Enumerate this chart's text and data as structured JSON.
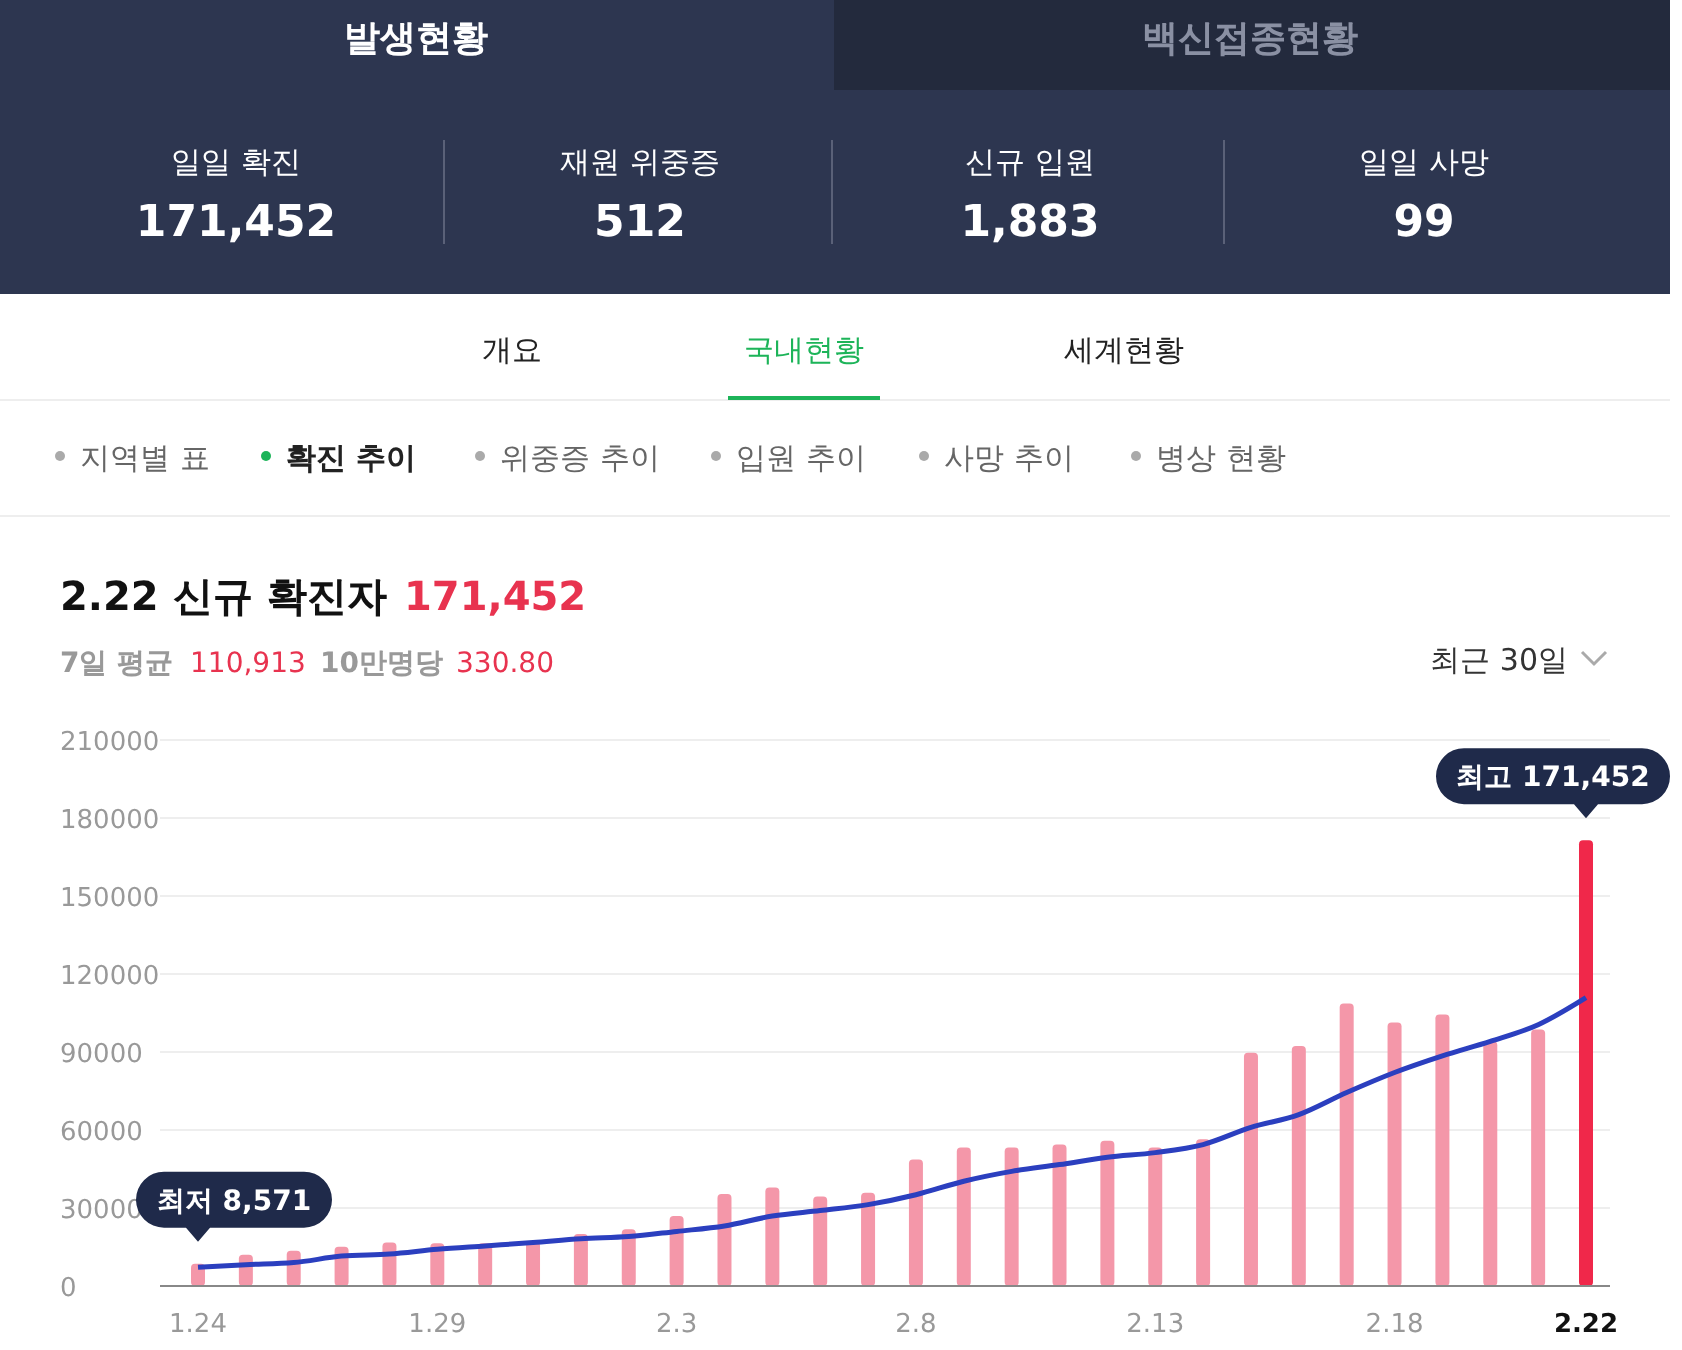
{
  "chart_data": [
    {
      "type": "other",
      "annotations": [
        "발생현황",
        "백신접종현황",
        "일일 확진",
        "171,452",
        "재원 위중증",
        "512",
        "신규 입원",
        "1,883",
        "일일 사망",
        "99",
        "개요",
        "국내현황",
        "세계현황",
        "지역별 표",
        "확진 추이",
        "위중증 추이",
        "입원 추이",
        "사망 추이",
        "병상 현황"
      ]
    },
    {
      "type": "bar",
      "title": "2.22 신규 확진자",
      "categories": [
        "1.24",
        null,
        null,
        null,
        null,
        "1.29",
        null,
        null,
        null,
        null,
        "2.3",
        null,
        null,
        null,
        null,
        "2.8",
        null,
        null,
        null,
        null,
        "2.13",
        null,
        null,
        null,
        null,
        "2.18",
        null,
        null,
        null,
        "2.22"
      ],
      "series": [
        {
          "type": "bar",
          "colors": [
            "#f497a9",
            "#f497a9",
            "#f497a9",
            "#f497a9",
            "#f497a9",
            "#f497a9",
            "#f497a9",
            "#f497a9",
            "#f497a9",
            "#f497a9",
            "#f497a9",
            "#f497a9",
            "#f497a9",
            "#f497a9",
            "#f497a9",
            "#f497a9",
            "#f497a9",
            "#f497a9",
            "#f497a9",
            "#f497a9",
            "#f497a9",
            "#f497a9",
            "#f497a9",
            "#f497a9",
            "#f497a9",
            "#f497a9",
            "#f497a9",
            "#f497a9",
            "#f497a9",
            "#f0284a"
          ],
          "values": [
            8571,
            12000,
            13600,
            15100,
            16700,
            16400,
            16400,
            17000,
            20000,
            21800,
            26900,
            35400,
            37900,
            34400,
            35900,
            48700,
            53300,
            53300,
            54400,
            55900,
            53300,
            56400,
            89700,
            92300,
            108700,
            101300,
            104400,
            94100,
            98700,
            171452
          ]
        },
        {
          "type": "line",
          "color": "#2b3fbf",
          "values": [
            7200,
            8200,
            9000,
            11500,
            12300,
            14100,
            15400,
            16700,
            18200,
            19000,
            21000,
            23100,
            26900,
            29000,
            31300,
            35100,
            40300,
            44100,
            46700,
            49500,
            51300,
            54400,
            61000,
            65900,
            74400,
            82100,
            88500,
            94100,
            100500,
            110913
          ]
        }
      ],
      "ylim": [
        0,
        210000
      ],
      "yticks": [
        0,
        30000,
        60000,
        90000,
        120000,
        150000,
        180000,
        210000
      ],
      "grid": "y",
      "line_style": "solid",
      "marker": "none",
      "annotations": [
        "171,452",
        "7일 평균",
        "110,913",
        "10만명당",
        "330.80",
        "최근 30일",
        {
          "text": "최저 8,571",
          "x": "1.24",
          "y": 8571
        },
        {
          "text": "최고 171,452",
          "x": "2.22",
          "y": 171452
        }
      ]
    }
  ]
}
